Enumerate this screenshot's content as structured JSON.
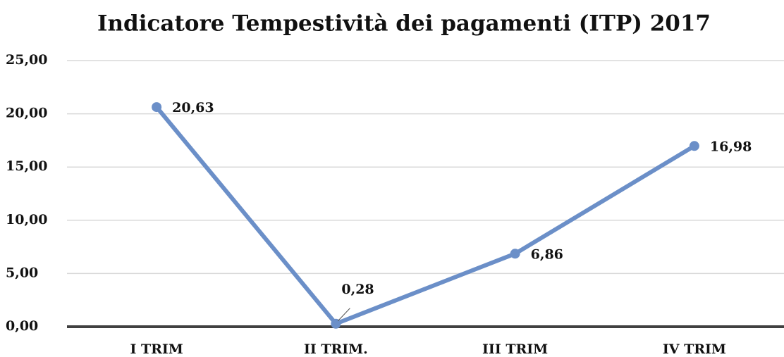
{
  "chart_data": {
    "type": "line",
    "title": "Indicatore Tempestività dei pagamenti (ITP) 2017",
    "categories": [
      "I TRIM",
      "II TRIM.",
      "III TRIM",
      "IV TRIM"
    ],
    "values": [
      20.63,
      0.28,
      6.86,
      16.98
    ],
    "value_labels": [
      "20,63",
      "0,28",
      "6,86",
      "16,98"
    ],
    "color": "#6b8fc8",
    "ylim": [
      0,
      25
    ],
    "yticks": [
      {
        "value": 0,
        "label": "0,00"
      },
      {
        "value": 5,
        "label": "5,00"
      },
      {
        "value": 10,
        "label": "10,00"
      },
      {
        "value": 15,
        "label": "15,00"
      },
      {
        "value": 20,
        "label": "20,00"
      },
      {
        "value": 25,
        "label": "25,00"
      }
    ],
    "grid": true
  }
}
